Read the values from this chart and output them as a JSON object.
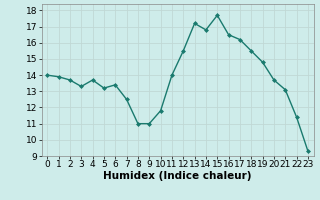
{
  "x": [
    0,
    1,
    2,
    3,
    4,
    5,
    6,
    7,
    8,
    9,
    10,
    11,
    12,
    13,
    14,
    15,
    16,
    17,
    18,
    19,
    20,
    21,
    22,
    23
  ],
  "y": [
    14.0,
    13.9,
    13.7,
    13.3,
    13.7,
    13.2,
    13.4,
    12.5,
    11.0,
    11.0,
    11.8,
    14.0,
    15.5,
    17.2,
    16.8,
    17.7,
    16.5,
    16.2,
    15.5,
    14.8,
    13.7,
    13.1,
    11.4,
    9.3
  ],
  "xlabel": "Humidex (Indice chaleur)",
  "xlim": [
    -0.5,
    23.5
  ],
  "ylim": [
    9,
    18.4
  ],
  "yticks": [
    9,
    10,
    11,
    12,
    13,
    14,
    15,
    16,
    17,
    18
  ],
  "xticks": [
    0,
    1,
    2,
    3,
    4,
    5,
    6,
    7,
    8,
    9,
    10,
    11,
    12,
    13,
    14,
    15,
    16,
    17,
    18,
    19,
    20,
    21,
    22,
    23
  ],
  "line_color": "#1a7a6e",
  "marker": "D",
  "marker_size": 2.0,
  "bg_color": "#ceecea",
  "grid_color": "#c0d8d5",
  "xlabel_fontsize": 7.5,
  "tick_fontsize": 6.5,
  "line_width": 1.0
}
